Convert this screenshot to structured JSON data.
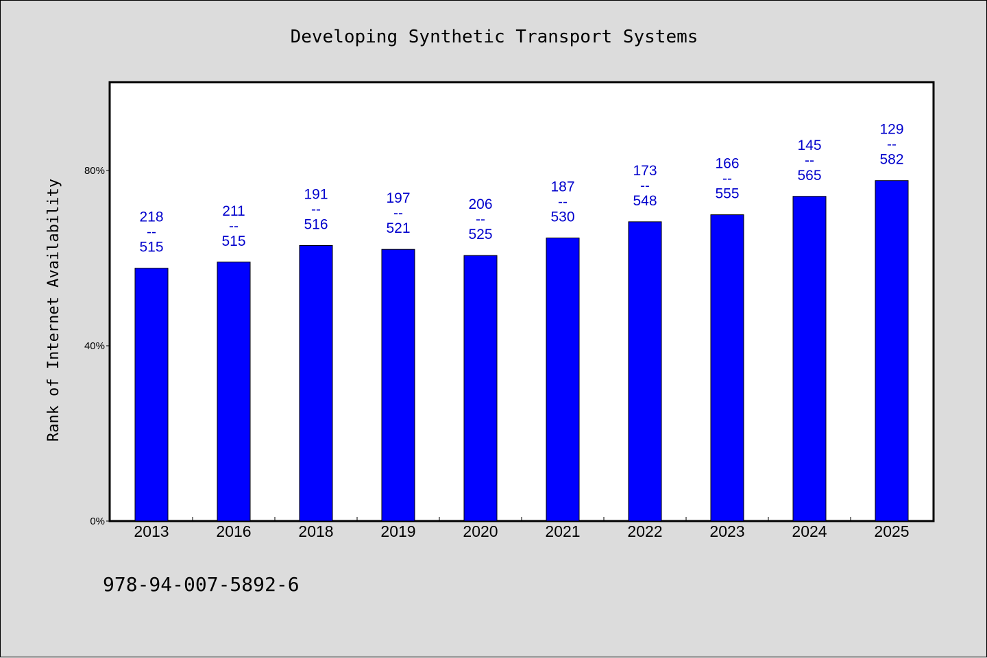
{
  "colors": {
    "background": "#dcdcdc",
    "plot_background": "#ffffff",
    "bar_fill": "#0000ff",
    "label_color": "#0000cc"
  },
  "chart_data": {
    "type": "bar",
    "title": "Developing Synthetic Transport Systems",
    "xlabel": "",
    "ylabel": "Rank of Internet Availability",
    "categories": [
      "2013",
      "2016",
      "2018",
      "2019",
      "2020",
      "2021",
      "2022",
      "2023",
      "2024",
      "2025"
    ],
    "values": [
      57.7,
      59.1,
      62.9,
      62.0,
      60.6,
      64.6,
      68.3,
      69.9,
      74.1,
      77.7
    ],
    "unit": "%",
    "ylim": [
      0,
      100
    ],
    "yticks": [
      0,
      40,
      80
    ],
    "ytick_labels": [
      "0%",
      "40%",
      "80%"
    ],
    "grid": false,
    "data_labels": [
      {
        "top": "218",
        "sep": "--",
        "bottom": "515"
      },
      {
        "top": "211",
        "sep": "--",
        "bottom": "515"
      },
      {
        "top": "191",
        "sep": "--",
        "bottom": "516"
      },
      {
        "top": "197",
        "sep": "--",
        "bottom": "521"
      },
      {
        "top": "206",
        "sep": "--",
        "bottom": "525"
      },
      {
        "top": "187",
        "sep": "--",
        "bottom": "530"
      },
      {
        "top": "173",
        "sep": "--",
        "bottom": "548"
      },
      {
        "top": "166",
        "sep": "--",
        "bottom": "555"
      },
      {
        "top": "145",
        "sep": "--",
        "bottom": "565"
      },
      {
        "top": "129",
        "sep": "--",
        "bottom": "582"
      }
    ]
  },
  "footnote": "978-94-007-5892-6"
}
